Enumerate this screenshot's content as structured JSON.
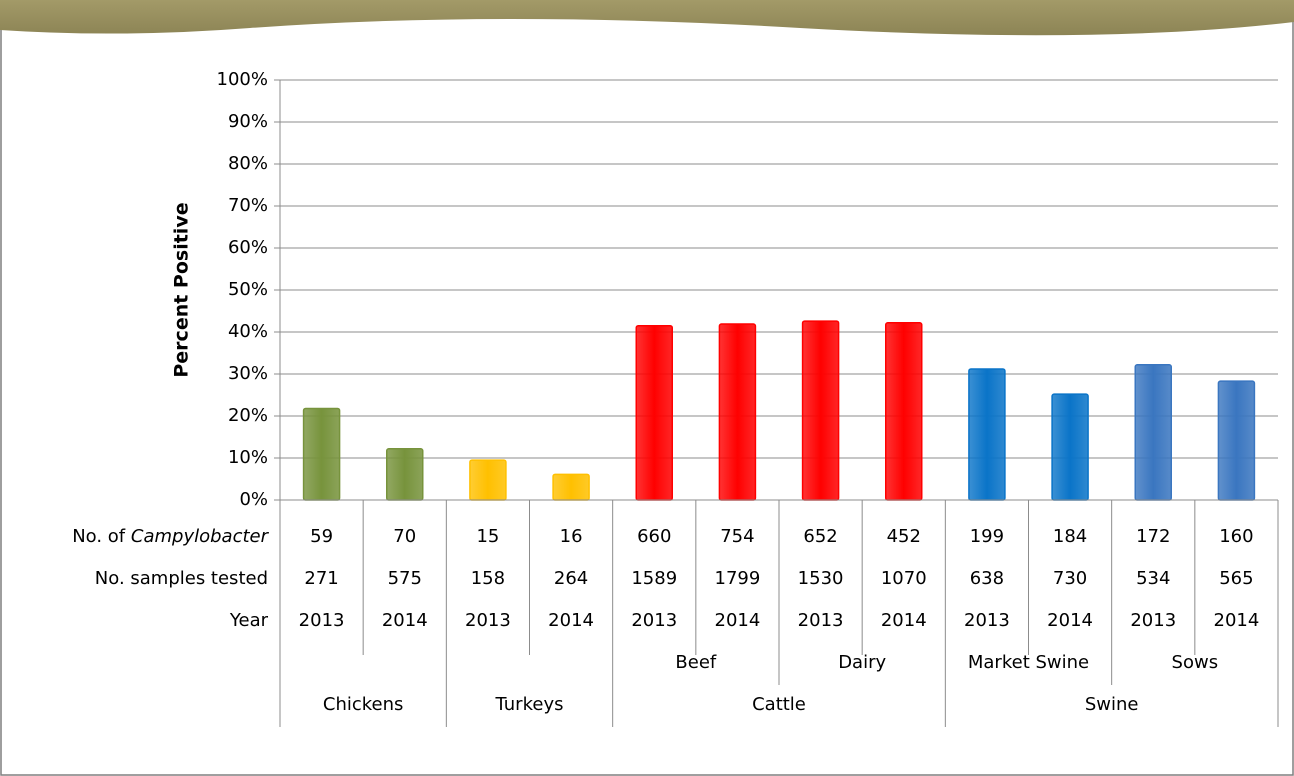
{
  "chart_data": {
    "type": "bar",
    "y_axis_label": "Percent Positive",
    "categories": [
      null,
      null,
      null,
      null,
      null,
      null,
      null,
      null,
      null,
      null,
      null,
      null
    ],
    "values": [
      21.8,
      12.2,
      9.5,
      6.1,
      41.5,
      41.9,
      42.6,
      42.2,
      31.2,
      25.2,
      32.2,
      28.3
    ],
    "colors": [
      "#77933c",
      "#77933c",
      "#ffc000",
      "#ffc000",
      "#ff0000",
      "#ff0000",
      "#ff0000",
      "#ff0000",
      "#0a74c8",
      "#0a74c8",
      "#3a76c0",
      "#3a76c0"
    ],
    "ylim": [
      0,
      100
    ],
    "yticks": [
      {
        "value": 0,
        "label": "0%"
      },
      {
        "value": 10,
        "label": "10%"
      },
      {
        "value": 20,
        "label": "20%"
      },
      {
        "value": 30,
        "label": "30%"
      },
      {
        "value": 40,
        "label": "40%"
      },
      {
        "value": 50,
        "label": "50%"
      },
      {
        "value": 60,
        "label": "60%"
      },
      {
        "value": 70,
        "label": "70%"
      },
      {
        "value": 80,
        "label": "80%"
      },
      {
        "value": 90,
        "label": "90%"
      },
      {
        "value": 100,
        "label": "100%"
      }
    ],
    "grid": true,
    "table": {
      "count_label": {
        "prefix": "No. of",
        "italic": "Campylobacter"
      },
      "samples_label": "No. samples tested",
      "year_label": "Year",
      "counts": [
        59,
        70,
        15,
        16,
        660,
        754,
        652,
        452,
        199,
        184,
        172,
        160
      ],
      "samples": [
        271,
        575,
        158,
        264,
        1589,
        1799,
        1530,
        1070,
        638,
        730,
        534,
        565
      ],
      "years": [
        2013,
        2014,
        2013,
        2014,
        2013,
        2014,
        2013,
        2014,
        2013,
        2014,
        2013,
        2014
      ],
      "subgroups": [
        {
          "label": "Beef",
          "start": 4,
          "span": 2
        },
        {
          "label": "Dairy",
          "start": 6,
          "span": 2
        },
        {
          "label": "Market Swine",
          "start": 8,
          "span": 2
        },
        {
          "label": "Sows",
          "start": 10,
          "span": 2
        }
      ],
      "groups": [
        {
          "label": "Chickens",
          "start": 0,
          "span": 2
        },
        {
          "label": "Turkeys",
          "start": 2,
          "span": 2
        },
        {
          "label": "Cattle",
          "start": 4,
          "span": 4
        },
        {
          "label": "Swine",
          "start": 8,
          "span": 4
        }
      ]
    }
  }
}
